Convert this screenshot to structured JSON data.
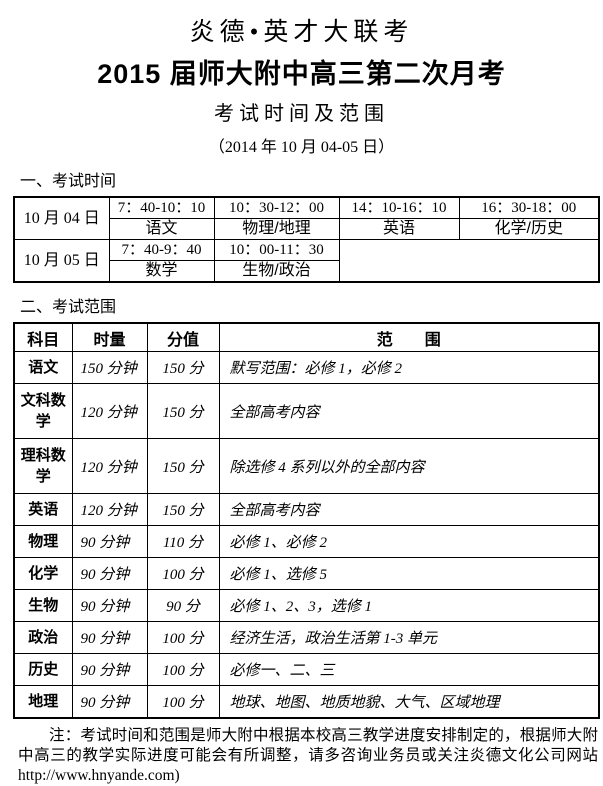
{
  "header": {
    "brand_title": "炎德•英才大联考",
    "exam_title": "2015 届师大附中高三第二次月考",
    "subtitle": "考试时间及范围",
    "date_line": "（2014 年 10 月 04-05 日）"
  },
  "section1": {
    "heading": "一、考试时间"
  },
  "schedule": {
    "days": [
      {
        "date": "10 月 04 日",
        "slots": [
          {
            "time": "7：40-10：10",
            "subject": "语文"
          },
          {
            "time": "10：30-12：00",
            "subject": "物理/地理"
          },
          {
            "time": "14：10-16：10",
            "subject": "英语"
          },
          {
            "time": "16：30-18：00",
            "subject": "化学/历史"
          }
        ]
      },
      {
        "date": "10 月 05 日",
        "slots": [
          {
            "time": "7：40-9：40",
            "subject": "数学"
          },
          {
            "time": "10：00-11：30",
            "subject": "生物/政治"
          }
        ]
      }
    ]
  },
  "section2": {
    "heading": "二、考试范围"
  },
  "scope": {
    "headers": [
      "科目",
      "时量",
      "分值",
      "范　　围"
    ],
    "rows": [
      {
        "subject": "语文",
        "duration": "150 分钟",
        "score": "150 分",
        "range": "默写范围：必修 1，必修 2"
      },
      {
        "subject": "文科数学",
        "duration": "120 分钟",
        "score": "150 分",
        "range": "全部高考内容"
      },
      {
        "subject": "理科数学",
        "duration": "120 分钟",
        "score": "150 分",
        "range": "除选修 4 系列以外的全部内容"
      },
      {
        "subject": "英语",
        "duration": "120 分钟",
        "score": "150 分",
        "range": "全部高考内容"
      },
      {
        "subject": "物理",
        "duration": "90 分钟",
        "score": "110 分",
        "range": "必修 1、必修 2"
      },
      {
        "subject": "化学",
        "duration": "90 分钟",
        "score": "100 分",
        "range": "必修 1、选修 5"
      },
      {
        "subject": "生物",
        "duration": "90 分钟",
        "score": "90 分",
        "range": "必修 1、2、3，选修 1"
      },
      {
        "subject": "政治",
        "duration": "90 分钟",
        "score": "100 分",
        "range": "经济生活，政治生活第 1-3 单元"
      },
      {
        "subject": "历史",
        "duration": "90 分钟",
        "score": "100 分",
        "range": "必修一、二、三"
      },
      {
        "subject": "地理",
        "duration": "90 分钟",
        "score": "100 分",
        "range": "地球、地图、地质地貌、大气、区域地理"
      }
    ]
  },
  "footer": {
    "note": "注：考试时间和范围是师大附中根据本校高三教学进度安排制定的，根据师大附中高三的教学实际进度可能会有所调整，请多咨询业务员或关注炎德文化公司网站http://www.hnyande.com)"
  }
}
